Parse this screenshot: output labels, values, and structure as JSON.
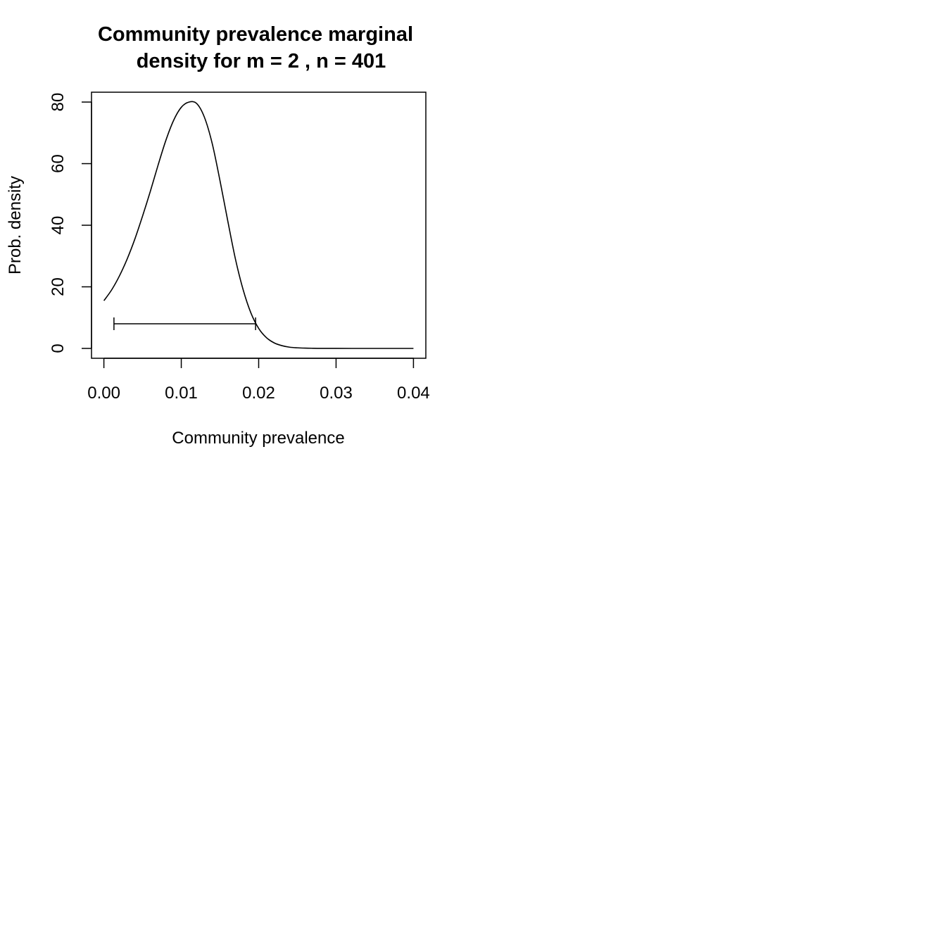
{
  "chart_data": {
    "type": "line",
    "title_lines": [
      "Community prevalence marginal",
      "density for m = 2 , n = 401"
    ],
    "xlabel": "Community prevalence",
    "ylabel": "Prob. density",
    "xlim": [
      -0.0016,
      0.0416
    ],
    "ylim": [
      -3.2,
      83.2
    ],
    "x_ticks": [
      0.0,
      0.01,
      0.02,
      0.03,
      0.04
    ],
    "x_tick_labels": [
      "0.00",
      "0.01",
      "0.02",
      "0.03",
      "0.04"
    ],
    "y_ticks": [
      0,
      20,
      40,
      60,
      80
    ],
    "y_tick_labels": [
      "0",
      "20",
      "40",
      "60",
      "80"
    ],
    "grid": false,
    "legend": "none",
    "series": [
      {
        "x": [
          0.0,
          0.001,
          0.002,
          0.003,
          0.004,
          0.005,
          0.006,
          0.007,
          0.008,
          0.009,
          0.01,
          0.011,
          0.012,
          0.013,
          0.014,
          0.015,
          0.016,
          0.017,
          0.018,
          0.019,
          0.02,
          0.021,
          0.022,
          0.023,
          0.024,
          0.025,
          0.026,
          0.027,
          0.028,
          0.03,
          0.032,
          0.034,
          0.036,
          0.038,
          0.04
        ],
        "y": [
          15.5,
          19.0,
          23.5,
          29.0,
          35.5,
          43.0,
          51.0,
          59.5,
          67.5,
          74.0,
          78.3,
          80.0,
          79.5,
          75.0,
          66.5,
          54.5,
          41.5,
          29.0,
          19.0,
          11.5,
          6.5,
          3.5,
          1.8,
          0.9,
          0.4,
          0.2,
          0.1,
          0.05,
          0.02,
          0.01,
          0.0,
          0.0,
          0.0,
          0.0,
          0.0
        ]
      }
    ],
    "interval": {
      "lower": 0.0013,
      "upper": 0.0196,
      "y": 8
    }
  }
}
